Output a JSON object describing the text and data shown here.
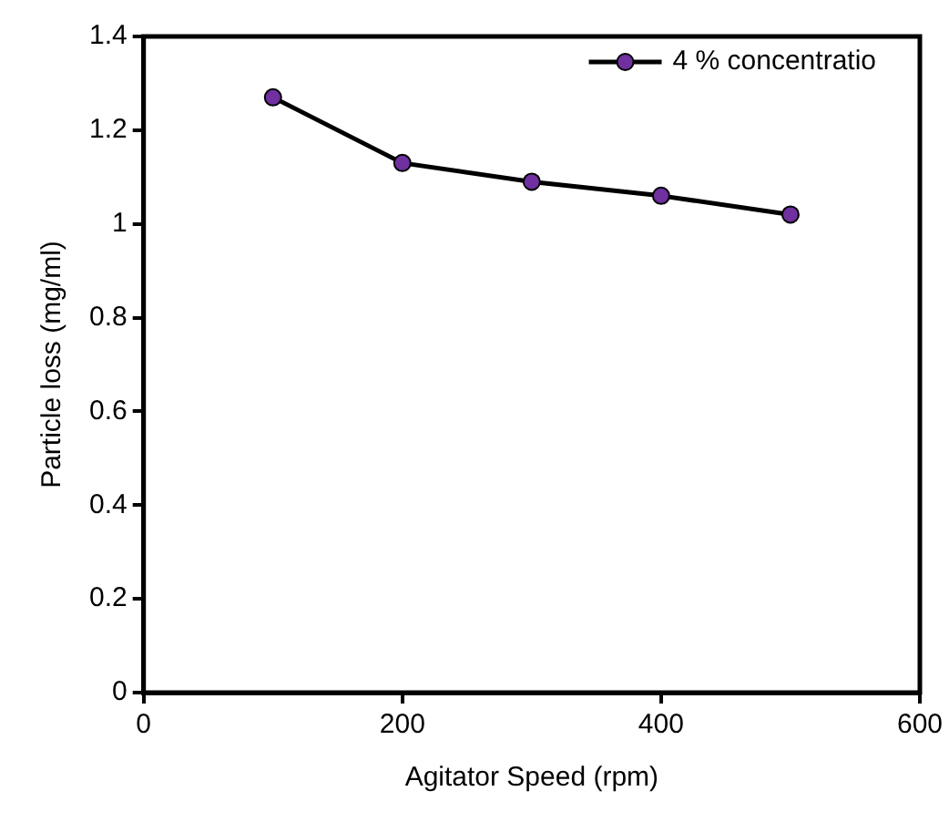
{
  "chart_data": {
    "type": "line",
    "xlabel": "Agitator Speed (rpm)",
    "ylabel": "Particle loss (mg/ml)",
    "x": [
      100,
      200,
      300,
      400,
      500
    ],
    "series": [
      {
        "name": "4 % concentratio",
        "color": "#7030a0",
        "values": [
          1.27,
          1.13,
          1.09,
          1.06,
          1.02
        ]
      }
    ],
    "xlim": [
      0,
      600
    ],
    "xticks": [
      0,
      200,
      400,
      600
    ],
    "ylim": [
      0,
      1.4
    ],
    "yticks": [
      0,
      0.2,
      0.4,
      0.6,
      0.8,
      1,
      1.2,
      1.4
    ],
    "grid": false,
    "legend": "top right",
    "marker": "circle",
    "line_style": "solid"
  }
}
